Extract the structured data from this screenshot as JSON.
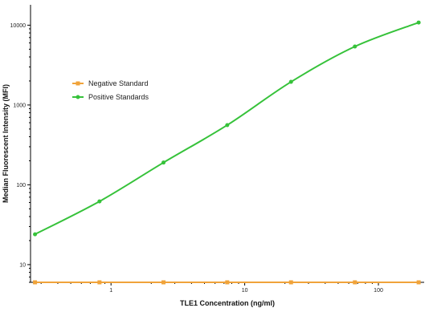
{
  "chart_data": {
    "type": "line",
    "xlabel": "TLE1 Concentration (ng/ml)",
    "ylabel": "Median Fluorescent Intensity (MFI)",
    "x_scale": "log",
    "y_scale": "log",
    "xlim": [
      0.25,
      220
    ],
    "ylim": [
      6,
      18000
    ],
    "x_ticks": [
      {
        "value": 1,
        "label": "1"
      },
      {
        "value": 10,
        "label": "10"
      },
      {
        "value": 100,
        "label": "100"
      }
    ],
    "y_ticks": [
      {
        "value": 10,
        "label": "10"
      },
      {
        "value": 100,
        "label": "100"
      },
      {
        "value": 1000,
        "label": "1000"
      },
      {
        "value": 10000,
        "label": "10000"
      }
    ],
    "legend_position": "top-left",
    "grid": false,
    "series": [
      {
        "name": "Negative Standard",
        "color": "#f0a33a",
        "x": [
          0.27,
          0.82,
          2.47,
          7.4,
          22.2,
          66.7,
          200
        ],
        "y": [
          6,
          6,
          6,
          6,
          6,
          6,
          6
        ]
      },
      {
        "name": "Positive Standards",
        "color": "#36c23a",
        "x": [
          0.27,
          0.82,
          2.47,
          7.4,
          22.2,
          66.7,
          200
        ],
        "y": [
          24,
          62,
          190,
          560,
          1950,
          5400,
          10800
        ]
      }
    ]
  }
}
